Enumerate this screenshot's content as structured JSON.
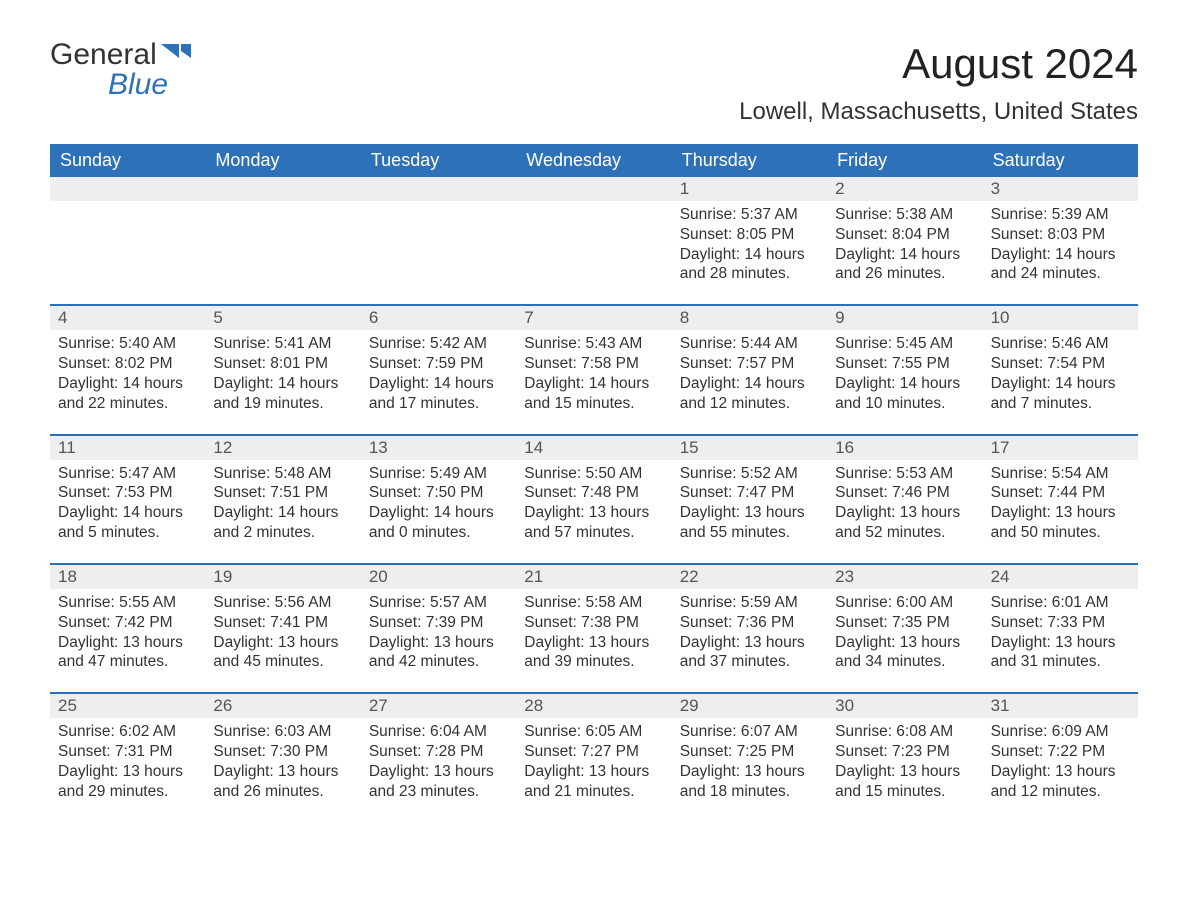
{
  "logo": {
    "word1": "General",
    "word2": "Blue"
  },
  "title": "August 2024",
  "location": "Lowell, Massachusetts, United States",
  "colors": {
    "header_bg": "#2d72b8",
    "header_text": "#ffffff",
    "daynum_bg": "#eeeeee",
    "body_bg": "#ffffff",
    "text": "#333333"
  },
  "day_names": [
    "Sunday",
    "Monday",
    "Tuesday",
    "Wednesday",
    "Thursday",
    "Friday",
    "Saturday"
  ],
  "weeks": [
    [
      {
        "n": "",
        "sr": "",
        "ss": "",
        "dl": "",
        "empty": true
      },
      {
        "n": "",
        "sr": "",
        "ss": "",
        "dl": "",
        "empty": true
      },
      {
        "n": "",
        "sr": "",
        "ss": "",
        "dl": "",
        "empty": true
      },
      {
        "n": "",
        "sr": "",
        "ss": "",
        "dl": "",
        "empty": true
      },
      {
        "n": "1",
        "sr": "Sunrise: 5:37 AM",
        "ss": "Sunset: 8:05 PM",
        "dl": "Daylight: 14 hours and 28 minutes."
      },
      {
        "n": "2",
        "sr": "Sunrise: 5:38 AM",
        "ss": "Sunset: 8:04 PM",
        "dl": "Daylight: 14 hours and 26 minutes."
      },
      {
        "n": "3",
        "sr": "Sunrise: 5:39 AM",
        "ss": "Sunset: 8:03 PM",
        "dl": "Daylight: 14 hours and 24 minutes."
      }
    ],
    [
      {
        "n": "4",
        "sr": "Sunrise: 5:40 AM",
        "ss": "Sunset: 8:02 PM",
        "dl": "Daylight: 14 hours and 22 minutes."
      },
      {
        "n": "5",
        "sr": "Sunrise: 5:41 AM",
        "ss": "Sunset: 8:01 PM",
        "dl": "Daylight: 14 hours and 19 minutes."
      },
      {
        "n": "6",
        "sr": "Sunrise: 5:42 AM",
        "ss": "Sunset: 7:59 PM",
        "dl": "Daylight: 14 hours and 17 minutes."
      },
      {
        "n": "7",
        "sr": "Sunrise: 5:43 AM",
        "ss": "Sunset: 7:58 PM",
        "dl": "Daylight: 14 hours and 15 minutes."
      },
      {
        "n": "8",
        "sr": "Sunrise: 5:44 AM",
        "ss": "Sunset: 7:57 PM",
        "dl": "Daylight: 14 hours and 12 minutes."
      },
      {
        "n": "9",
        "sr": "Sunrise: 5:45 AM",
        "ss": "Sunset: 7:55 PM",
        "dl": "Daylight: 14 hours and 10 minutes."
      },
      {
        "n": "10",
        "sr": "Sunrise: 5:46 AM",
        "ss": "Sunset: 7:54 PM",
        "dl": "Daylight: 14 hours and 7 minutes."
      }
    ],
    [
      {
        "n": "11",
        "sr": "Sunrise: 5:47 AM",
        "ss": "Sunset: 7:53 PM",
        "dl": "Daylight: 14 hours and 5 minutes."
      },
      {
        "n": "12",
        "sr": "Sunrise: 5:48 AM",
        "ss": "Sunset: 7:51 PM",
        "dl": "Daylight: 14 hours and 2 minutes."
      },
      {
        "n": "13",
        "sr": "Sunrise: 5:49 AM",
        "ss": "Sunset: 7:50 PM",
        "dl": "Daylight: 14 hours and 0 minutes."
      },
      {
        "n": "14",
        "sr": "Sunrise: 5:50 AM",
        "ss": "Sunset: 7:48 PM",
        "dl": "Daylight: 13 hours and 57 minutes."
      },
      {
        "n": "15",
        "sr": "Sunrise: 5:52 AM",
        "ss": "Sunset: 7:47 PM",
        "dl": "Daylight: 13 hours and 55 minutes."
      },
      {
        "n": "16",
        "sr": "Sunrise: 5:53 AM",
        "ss": "Sunset: 7:46 PM",
        "dl": "Daylight: 13 hours and 52 minutes."
      },
      {
        "n": "17",
        "sr": "Sunrise: 5:54 AM",
        "ss": "Sunset: 7:44 PM",
        "dl": "Daylight: 13 hours and 50 minutes."
      }
    ],
    [
      {
        "n": "18",
        "sr": "Sunrise: 5:55 AM",
        "ss": "Sunset: 7:42 PM",
        "dl": "Daylight: 13 hours and 47 minutes."
      },
      {
        "n": "19",
        "sr": "Sunrise: 5:56 AM",
        "ss": "Sunset: 7:41 PM",
        "dl": "Daylight: 13 hours and 45 minutes."
      },
      {
        "n": "20",
        "sr": "Sunrise: 5:57 AM",
        "ss": "Sunset: 7:39 PM",
        "dl": "Daylight: 13 hours and 42 minutes."
      },
      {
        "n": "21",
        "sr": "Sunrise: 5:58 AM",
        "ss": "Sunset: 7:38 PM",
        "dl": "Daylight: 13 hours and 39 minutes."
      },
      {
        "n": "22",
        "sr": "Sunrise: 5:59 AM",
        "ss": "Sunset: 7:36 PM",
        "dl": "Daylight: 13 hours and 37 minutes."
      },
      {
        "n": "23",
        "sr": "Sunrise: 6:00 AM",
        "ss": "Sunset: 7:35 PM",
        "dl": "Daylight: 13 hours and 34 minutes."
      },
      {
        "n": "24",
        "sr": "Sunrise: 6:01 AM",
        "ss": "Sunset: 7:33 PM",
        "dl": "Daylight: 13 hours and 31 minutes."
      }
    ],
    [
      {
        "n": "25",
        "sr": "Sunrise: 6:02 AM",
        "ss": "Sunset: 7:31 PM",
        "dl": "Daylight: 13 hours and 29 minutes."
      },
      {
        "n": "26",
        "sr": "Sunrise: 6:03 AM",
        "ss": "Sunset: 7:30 PM",
        "dl": "Daylight: 13 hours and 26 minutes."
      },
      {
        "n": "27",
        "sr": "Sunrise: 6:04 AM",
        "ss": "Sunset: 7:28 PM",
        "dl": "Daylight: 13 hours and 23 minutes."
      },
      {
        "n": "28",
        "sr": "Sunrise: 6:05 AM",
        "ss": "Sunset: 7:27 PM",
        "dl": "Daylight: 13 hours and 21 minutes."
      },
      {
        "n": "29",
        "sr": "Sunrise: 6:07 AM",
        "ss": "Sunset: 7:25 PM",
        "dl": "Daylight: 13 hours and 18 minutes."
      },
      {
        "n": "30",
        "sr": "Sunrise: 6:08 AM",
        "ss": "Sunset: 7:23 PM",
        "dl": "Daylight: 13 hours and 15 minutes."
      },
      {
        "n": "31",
        "sr": "Sunrise: 6:09 AM",
        "ss": "Sunset: 7:22 PM",
        "dl": "Daylight: 13 hours and 12 minutes."
      }
    ]
  ]
}
